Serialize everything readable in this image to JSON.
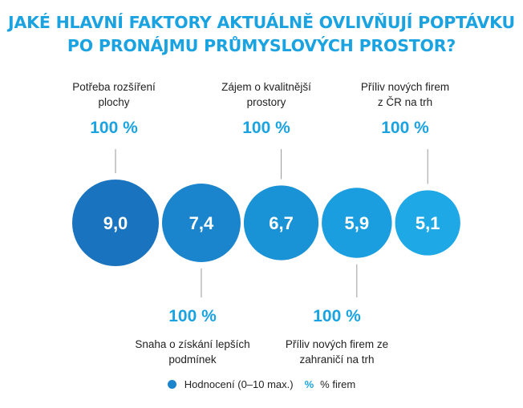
{
  "title": {
    "line1": "JAKÉ HLAVNÍ FAKTORY AKTUÁLNĚ OVLIVŇUJÍ POPTÁVKU",
    "line2": "PO PRONÁJMU PRŮMYSLOVÝCH PROSTOR?"
  },
  "chart_data": {
    "type": "bubble",
    "scale": "0–10",
    "items": [
      {
        "label_lines": [
          "Potřeba rozšíření",
          "plochy"
        ],
        "rating": 9.0,
        "rating_label": "9,0",
        "percent": 100,
        "percent_label": "100 %",
        "label_position": "top"
      },
      {
        "label_lines": [
          "Snaha o získání lepších",
          "podmínek"
        ],
        "rating": 7.4,
        "rating_label": "7,4",
        "percent": 100,
        "percent_label": "100 %",
        "label_position": "bottom"
      },
      {
        "label_lines": [
          "Zájem o kvalitnější",
          "prostory"
        ],
        "rating": 6.7,
        "rating_label": "6,7",
        "percent": 100,
        "percent_label": "100 %",
        "label_position": "top"
      },
      {
        "label_lines": [
          "Příliv nových firem ze",
          "zahraničí na trh"
        ],
        "rating": 5.9,
        "rating_label": "5,9",
        "percent": 100,
        "percent_label": "100 %",
        "label_position": "bottom"
      },
      {
        "label_lines": [
          "Příliv nových firem",
          "z ČR na trh"
        ],
        "rating": 5.1,
        "rating_label": "5,1",
        "percent": 100,
        "percent_label": "100 %",
        "label_position": "top"
      }
    ],
    "colors": [
      "#1a73be",
      "#1a84cc",
      "#1a92d6",
      "#1b9edf",
      "#1ea8e6"
    ]
  },
  "legend": {
    "rating": "Hodnocení (0–10 max.)",
    "percent_symbol": "%",
    "percent": "% firem"
  }
}
